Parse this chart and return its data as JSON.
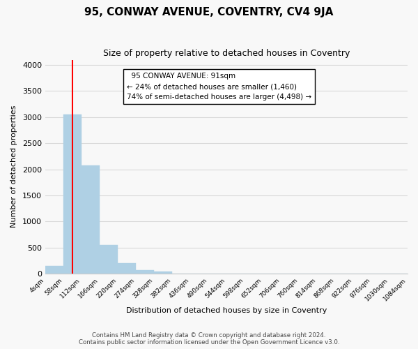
{
  "title": "95, CONWAY AVENUE, COVENTRY, CV4 9JA",
  "subtitle": "Size of property relative to detached houses in Coventry",
  "xlabel": "Distribution of detached houses by size in Coventry",
  "ylabel": "Number of detached properties",
  "bar_color": "#afd0e4",
  "bar_edge_color": "#afd0e4",
  "vline_color": "red",
  "bin_edges_labels": [
    "4sqm",
    "58sqm",
    "112sqm",
    "166sqm",
    "220sqm",
    "274sqm",
    "328sqm",
    "382sqm",
    "436sqm",
    "490sqm",
    "544sqm",
    "598sqm",
    "652sqm",
    "706sqm",
    "760sqm",
    "814sqm",
    "868sqm",
    "922sqm",
    "976sqm",
    "1030sqm",
    "1084sqm"
  ],
  "bar_values": [
    150,
    3050,
    2070,
    550,
    205,
    65,
    45,
    0,
    0,
    0,
    0,
    0,
    0,
    0,
    0,
    0,
    0,
    0,
    0,
    0
  ],
  "vline_position": 1.5,
  "ylim": [
    0,
    4100
  ],
  "yticks": [
    0,
    500,
    1000,
    1500,
    2000,
    2500,
    3000,
    3500,
    4000
  ],
  "annotation_title": "95 CONWAY AVENUE: 91sqm",
  "annotation_line1": "← 24% of detached houses are smaller (1,460)",
  "annotation_line2": "74% of semi-detached houses are larger (4,498) →",
  "annotation_box_color": "white",
  "annotation_box_edge": "black",
  "footnote1": "Contains HM Land Registry data © Crown copyright and database right 2024.",
  "footnote2": "Contains public sector information licensed under the Open Government Licence v3.0.",
  "grid_color": "#d8d8d8",
  "background_color": "#f8f8f8"
}
